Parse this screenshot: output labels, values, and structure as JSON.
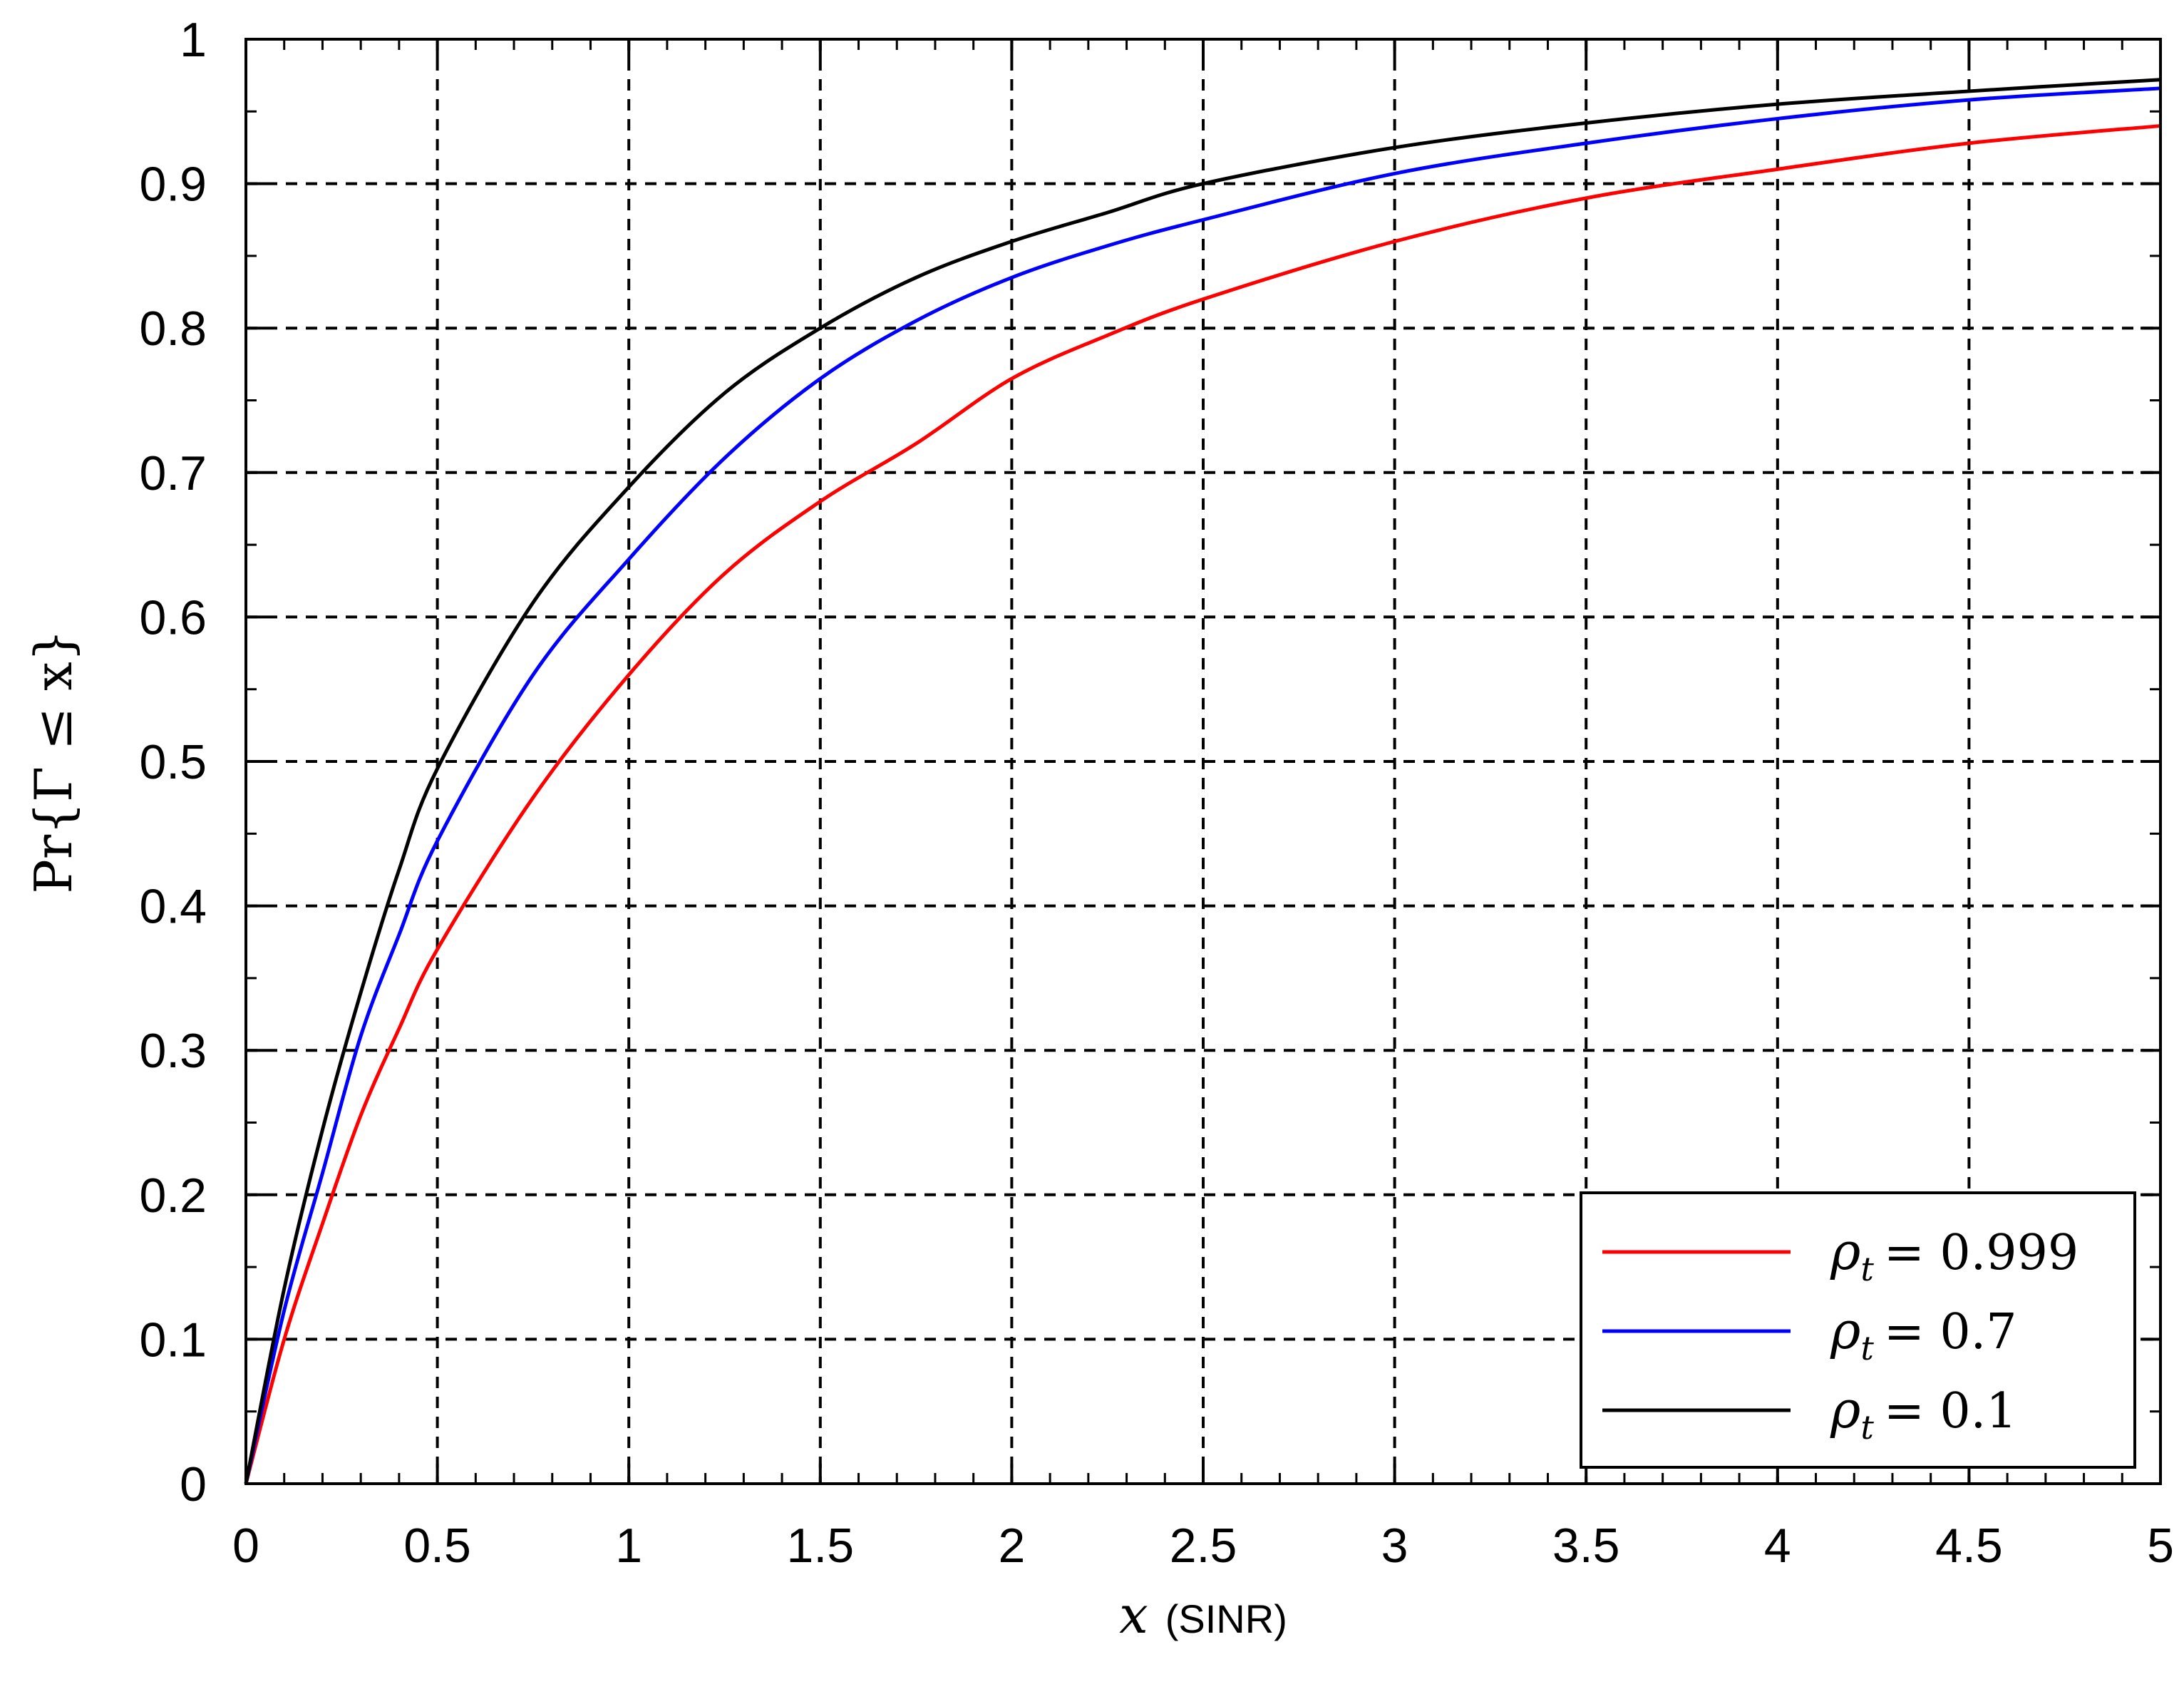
{
  "chart_data": {
    "type": "line",
    "xlabel_var": "x",
    "xlabel_unit": "(SINR)",
    "ylabel": "Pr{Γ ≤ x}",
    "xlim": [
      0,
      5
    ],
    "ylim": [
      0,
      1
    ],
    "xticks": [
      "0",
      "0.5",
      "1",
      "1.5",
      "2",
      "2.5",
      "3",
      "3.5",
      "4",
      "4.5",
      "5"
    ],
    "yticks": [
      "0",
      "0.1",
      "0.2",
      "0.3",
      "0.4",
      "0.5",
      "0.6",
      "0.7",
      "0.8",
      "0.9",
      "1"
    ],
    "grid": "dashed",
    "legend_position": "bottom-right",
    "x": [
      0,
      0.1,
      0.2,
      0.3,
      0.4,
      0.5,
      0.75,
      1.0,
      1.25,
      1.5,
      1.75,
      2.0,
      2.25,
      2.5,
      3.0,
      3.5,
      4.0,
      4.5,
      5.0
    ],
    "series": [
      {
        "name_symbol": "ρ",
        "name_sub": "t",
        "name_value": "= 0.999",
        "color": "#ff0000",
        "values": [
          0,
          0.1,
          0.18,
          0.255,
          0.315,
          0.37,
          0.475,
          0.56,
          0.63,
          0.68,
          0.72,
          0.765,
          0.795,
          0.82,
          0.86,
          0.89,
          0.91,
          0.928,
          0.94
        ]
      },
      {
        "name_symbol": "ρ",
        "name_sub": "t",
        "name_value": "= 0.7",
        "color": "#0000ff",
        "values": [
          0,
          0.12,
          0.215,
          0.31,
          0.38,
          0.445,
          0.56,
          0.64,
          0.71,
          0.765,
          0.805,
          0.835,
          0.857,
          0.875,
          0.907,
          0.928,
          0.945,
          0.958,
          0.966
        ]
      },
      {
        "name_symbol": "ρ",
        "name_sub": "t",
        "name_value": "= 0.1",
        "color": "#000000",
        "values": [
          0,
          0.135,
          0.245,
          0.34,
          0.425,
          0.495,
          0.61,
          0.69,
          0.755,
          0.8,
          0.835,
          0.86,
          0.88,
          0.9,
          0.925,
          0.942,
          0.955,
          0.964,
          0.972
        ]
      }
    ]
  }
}
